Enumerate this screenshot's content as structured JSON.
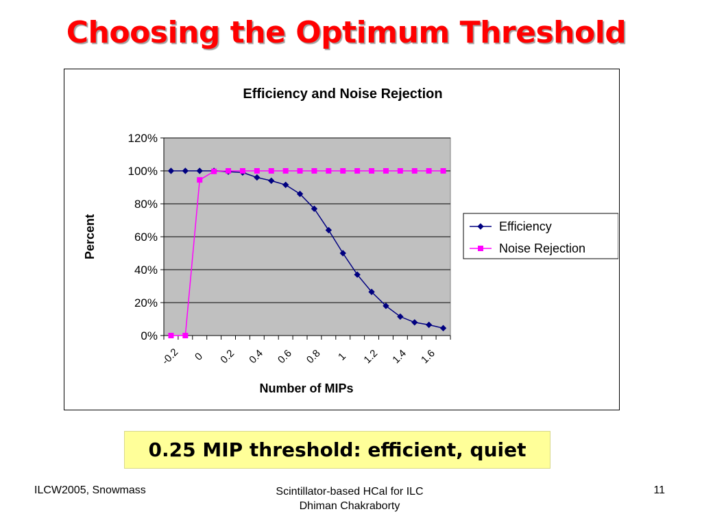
{
  "slide": {
    "title": "Choosing the Optimum Threshold",
    "callout": "0.25 MIP threshold: efficient, quiet",
    "footer_left": "ILCW2005, Snowmass",
    "footer_center_line1": "Scintillator-based HCal for ILC",
    "footer_center_line2": "Dhiman Chakraborty",
    "page_number": "11",
    "title_color": "#ff0000",
    "callout_color": "#ffff99"
  },
  "chart_data": {
    "type": "line",
    "title": "Efficiency and Noise Rejection",
    "xlabel": "Number of MIPs",
    "ylabel": "Percent",
    "x": [
      -0.2,
      -0.1,
      0,
      0.1,
      0.2,
      0.3,
      0.4,
      0.5,
      0.6,
      0.7,
      0.8,
      0.9,
      1.0,
      1.1,
      1.2,
      1.3,
      1.4,
      1.5,
      1.6,
      1.7
    ],
    "x_tick_labels": [
      "-0.2",
      "0",
      "0.2",
      "0.4",
      "0.6",
      "0.8",
      "1",
      "1.2",
      "1.4",
      "1.6"
    ],
    "y_tick_labels": [
      "0%",
      "20%",
      "40%",
      "60%",
      "80%",
      "100%",
      "120%"
    ],
    "ylim": [
      0,
      120
    ],
    "grid": true,
    "plot_background": "#c0c0c0",
    "legend_position": "right",
    "series": [
      {
        "name": "Efficiency",
        "color": "#000080",
        "marker": "diamond",
        "values": [
          100,
          100,
          100,
          100,
          99.5,
          99,
          96,
          94,
          91.5,
          86,
          77,
          64,
          50,
          37,
          26.5,
          18,
          11.5,
          8,
          6.5,
          4.5
        ]
      },
      {
        "name": "Noise Rejection",
        "color": "#ff00ff",
        "marker": "square",
        "values": [
          0,
          0,
          94.5,
          99.7,
          100,
          100,
          100,
          100,
          100,
          100,
          100,
          100,
          100,
          100,
          100,
          100,
          100,
          100,
          100,
          100
        ]
      }
    ]
  }
}
